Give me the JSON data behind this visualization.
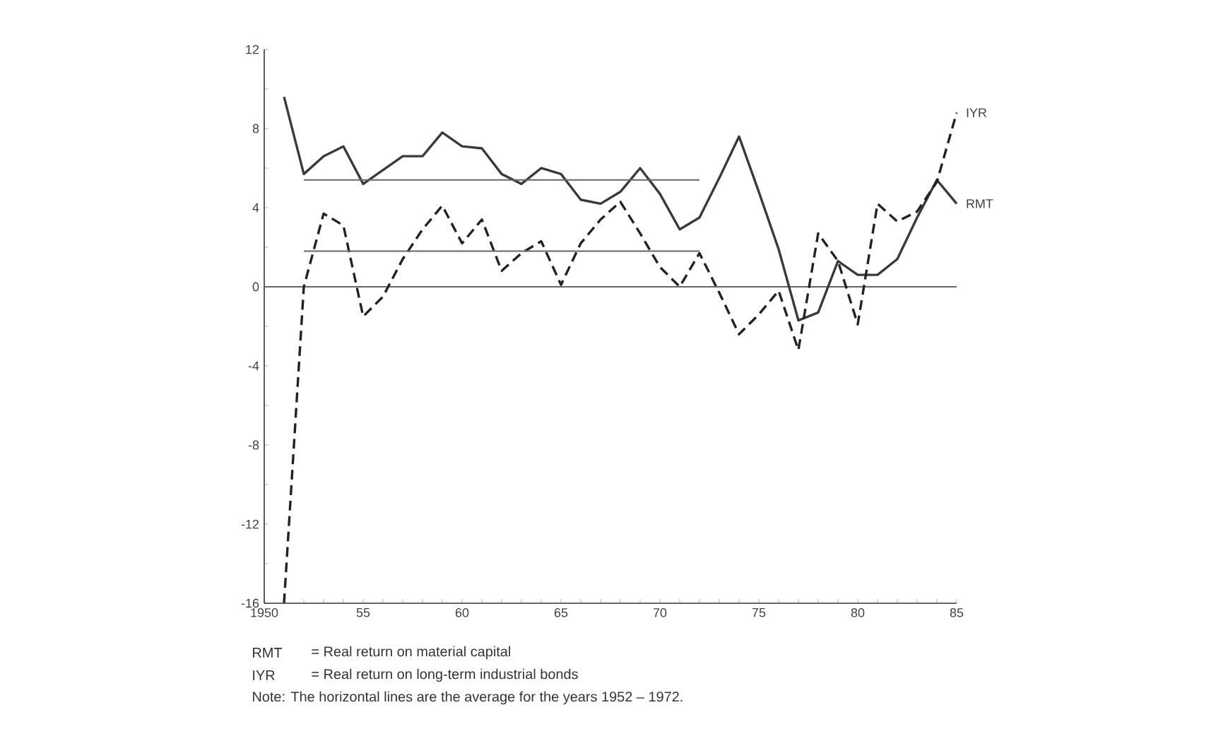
{
  "chart_data": {
    "type": "line",
    "x": [
      1951,
      1952,
      1953,
      1954,
      1955,
      1956,
      1957,
      1958,
      1959,
      1960,
      1961,
      1962,
      1963,
      1964,
      1965,
      1966,
      1967,
      1968,
      1969,
      1970,
      1971,
      1972,
      1973,
      1974,
      1975,
      1976,
      1977,
      1978,
      1979,
      1980,
      1981,
      1982,
      1983,
      1984,
      1985
    ],
    "series": [
      {
        "name": "RMT",
        "color": "#3a3a3a",
        "line_style": "solid",
        "values": [
          9.6,
          5.7,
          6.6,
          7.1,
          5.2,
          5.9,
          6.6,
          6.6,
          7.8,
          7.1,
          7.0,
          5.7,
          5.2,
          6.0,
          5.7,
          4.4,
          4.2,
          4.8,
          6.0,
          4.7,
          2.9,
          3.5,
          5.5,
          7.6,
          4.8,
          1.9,
          -1.7,
          -1.3,
          1.3,
          0.6,
          0.6,
          1.4,
          3.5,
          5.4,
          4.2
        ]
      },
      {
        "name": "IYR",
        "color": "#222222",
        "line_style": "dashed",
        "values": [
          -16.0,
          0.0,
          3.7,
          3.1,
          -1.5,
          -0.5,
          1.4,
          2.9,
          4.1,
          2.2,
          3.4,
          0.8,
          1.7,
          2.3,
          0.1,
          2.2,
          3.4,
          4.3,
          2.7,
          1.0,
          0.0,
          1.7,
          -0.3,
          -2.4,
          -1.4,
          -0.2,
          -3.2,
          2.7,
          1.3,
          -1.9,
          4.2,
          3.3,
          3.8,
          5.3,
          8.8
        ]
      },
      {
        "type": "line",
        "color": "#666666",
        "line_style": "solid",
        "values": [
          null,
          5.4,
          5.4,
          5.4,
          5.4,
          5.4,
          5.4,
          5.4,
          5.4,
          5.4,
          5.4,
          5.4,
          5.4,
          5.4,
          5.4,
          5.4,
          5.4,
          5.4,
          5.4,
          5.4,
          5.4,
          5.4,
          null,
          null,
          null,
          null,
          null,
          null,
          null,
          null,
          null,
          null,
          null,
          null,
          null
        ]
      },
      {
        "type": "line",
        "color": "#666666",
        "line_style": "solid",
        "values": [
          null,
          1.8,
          1.8,
          1.8,
          1.8,
          1.8,
          1.8,
          1.8,
          1.8,
          1.8,
          1.8,
          1.8,
          1.8,
          1.8,
          1.8,
          1.8,
          1.8,
          1.8,
          1.8,
          1.8,
          1.8,
          1.8,
          null,
          null,
          null,
          null,
          null,
          null,
          null,
          null,
          null,
          null,
          null,
          null,
          null
        ]
      }
    ],
    "ref_lines": [
      {
        "axis": "y",
        "value": 0,
        "color": "#666666"
      }
    ],
    "xlim": [
      1950,
      1985
    ],
    "ylim": [
      -16,
      12
    ],
    "xticks": [
      {
        "value": 1950,
        "label": "1950"
      },
      {
        "value": 1951,
        "label": null
      },
      {
        "value": 1952,
        "label": null
      },
      {
        "value": 1953,
        "label": null
      },
      {
        "value": 1954,
        "label": null
      },
      {
        "value": 1955,
        "label": "55"
      },
      {
        "value": 1956,
        "label": null
      },
      {
        "value": 1957,
        "label": null
      },
      {
        "value": 1958,
        "label": null
      },
      {
        "value": 1959,
        "label": null
      },
      {
        "value": 1960,
        "label": "60"
      },
      {
        "value": 1961,
        "label": null
      },
      {
        "value": 1962,
        "label": null
      },
      {
        "value": 1963,
        "label": null
      },
      {
        "value": 1964,
        "label": null
      },
      {
        "value": 1965,
        "label": "65"
      },
      {
        "value": 1966,
        "label": null
      },
      {
        "value": 1967,
        "label": null
      },
      {
        "value": 1968,
        "label": null
      },
      {
        "value": 1969,
        "label": null
      },
      {
        "value": 1970,
        "label": "70"
      },
      {
        "value": 1971,
        "label": null
      },
      {
        "value": 1972,
        "label": null
      },
      {
        "value": 1973,
        "label": null
      },
      {
        "value": 1974,
        "label": null
      },
      {
        "value": 1975,
        "label": "75"
      },
      {
        "value": 1976,
        "label": null
      },
      {
        "value": 1977,
        "label": null
      },
      {
        "value": 1978,
        "label": null
      },
      {
        "value": 1979,
        "label": null
      },
      {
        "value": 1980,
        "label": "80"
      },
      {
        "value": 1981,
        "label": null
      },
      {
        "value": 1982,
        "label": null
      },
      {
        "value": 1983,
        "label": null
      },
      {
        "value": 1984,
        "label": null
      },
      {
        "value": 1985,
        "label": "85"
      }
    ],
    "yticks": [
      -16,
      {
        "value": -14,
        "label": null
      },
      -12,
      {
        "value": -10,
        "label": null
      },
      -8,
      {
        "value": -6,
        "label": null
      },
      -4,
      {
        "value": -2,
        "label": null
      },
      0,
      {
        "value": 2,
        "label": null
      },
      4,
      {
        "value": 6,
        "label": null
      },
      8,
      {
        "value": 10,
        "label": null
      },
      12
    ],
    "grid": false,
    "marker": "none",
    "annotations": [
      "RMT",
      "= Real return on material capital",
      "IYR",
      "= Real return on long-term industrial bonds",
      "Note: The horizontal lines are the average for the years 1952 – 1972."
    ]
  }
}
